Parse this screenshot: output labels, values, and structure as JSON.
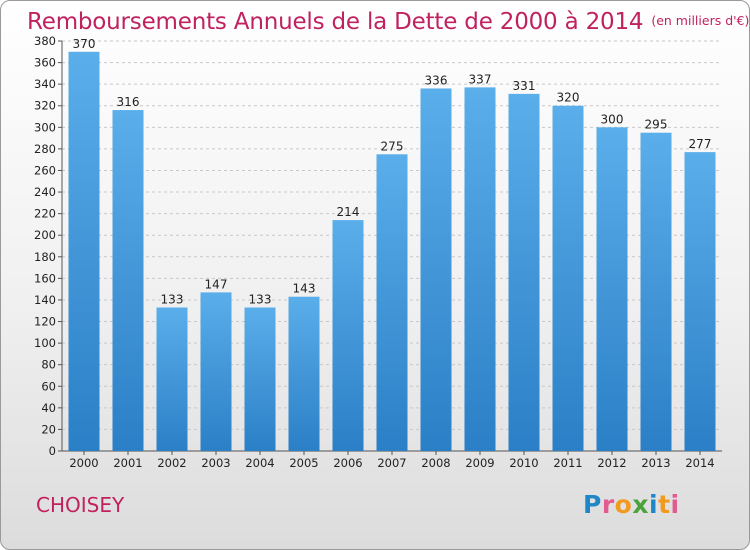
{
  "title": "Remboursements Annuels de la Dette de 2000 à 2014",
  "unit": "(en milliers d'€)",
  "city": "CHOISEY",
  "logo": "Proxiti",
  "colors": {
    "bar_top": "#5aaeea",
    "bar_bottom": "#2b7fc6",
    "title": "#c0225f"
  },
  "chart_data": {
    "type": "bar",
    "categories": [
      "2000",
      "2001",
      "2002",
      "2003",
      "2004",
      "2005",
      "2006",
      "2007",
      "2008",
      "2009",
      "2010",
      "2011",
      "2012",
      "2013",
      "2014"
    ],
    "values": [
      370,
      316,
      133,
      147,
      133,
      143,
      214,
      275,
      336,
      337,
      331,
      320,
      300,
      295,
      277
    ],
    "ylim": [
      0,
      380
    ],
    "yticks": [
      0,
      20,
      40,
      60,
      80,
      100,
      120,
      140,
      160,
      180,
      200,
      220,
      240,
      260,
      280,
      300,
      320,
      340,
      360,
      380
    ],
    "grid": true,
    "title": "Remboursements Annuels de la Dette de 2000 à 2014",
    "xlabel": "",
    "ylabel": ""
  }
}
